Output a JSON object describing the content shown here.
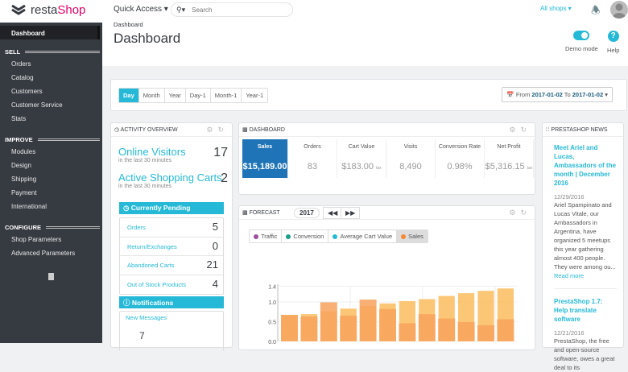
{
  "header": {
    "logo": {
      "brand_a": "resta",
      "brand_b": "Shop"
    },
    "quick_access": "Quick Access ▾",
    "search_placeholder": "Search",
    "all_shops": "All shops ▾"
  },
  "sidebar": {
    "active": "Dashboard",
    "sections": [
      {
        "title": "SELL",
        "items": [
          "Orders",
          "Catalog",
          "Customers",
          "Customer Service",
          "Stats"
        ]
      },
      {
        "title": "IMPROVE",
        "items": [
          "Modules",
          "Design",
          "Shipping",
          "Payment",
          "International"
        ]
      },
      {
        "title": "CONFIGURE",
        "items": [
          "Shop Parameters",
          "Advanced Parameters"
        ]
      }
    ]
  },
  "page": {
    "breadcrumb": "Dashboard",
    "title": "Dashboard",
    "demo_mode": "Demo mode",
    "demo_mode_on": true,
    "help": "Help"
  },
  "toolbar": {
    "periods": [
      "Day",
      "Month",
      "Year",
      "Day-1",
      "Month-1",
      "Year-1"
    ],
    "active_period": "Day",
    "from_label": "From",
    "from": "2017-01-02",
    "to_label": "To",
    "to": "2017-01-02"
  },
  "activity": {
    "title": "Activity overview",
    "online_visitors": {
      "label": "Online Visitors",
      "sub": "in the last 30 minutes",
      "value": "17"
    },
    "active_carts": {
      "label": "Active Shopping Carts",
      "sub": "in the last 30 minutes",
      "value": "2"
    },
    "pending_title": "Currently Pending",
    "pending": [
      {
        "label": "Orders",
        "value": "5"
      },
      {
        "label": "Return/Exchanges",
        "value": "0"
      },
      {
        "label": "Abandoned Carts",
        "value": "21"
      },
      {
        "label": "Out of Stock Products",
        "value": "4"
      }
    ],
    "notifications_title": "Notifications",
    "new_messages": {
      "label": "New Messages",
      "value": "7"
    }
  },
  "dashboard": {
    "title": "Dashboard",
    "kpis": [
      {
        "label": "Sales",
        "value": "$15,189.00",
        "tax": ""
      },
      {
        "label": "Orders",
        "value": "83",
        "tax": ""
      },
      {
        "label": "Cart Value",
        "value": "$183.00",
        "tax": "tax"
      },
      {
        "label": "Visits",
        "value": "8,490",
        "tax": ""
      },
      {
        "label": "Conversion Rate",
        "value": "0.98%",
        "tax": ""
      },
      {
        "label": "Net Profit",
        "value": "$5,316.15",
        "tax": "tax"
      }
    ]
  },
  "forecast": {
    "title": "Forecast",
    "year": "2017",
    "prev": "◀◀",
    "next": "▶▶",
    "legend": [
      {
        "label": "Traffic",
        "color": "#9b4f9e"
      },
      {
        "label": "Conversion",
        "color": "#1a9f8a"
      },
      {
        "label": "Average Cart Value",
        "color": "#25b9d7"
      },
      {
        "label": "Sales",
        "color": "#f7882f",
        "active": true
      }
    ]
  },
  "chart_data": {
    "type": "bar",
    "ylim": [
      0,
      1.4
    ],
    "yticks": [
      "0.0",
      "0.5",
      "1.0",
      "1.4"
    ],
    "grid": true,
    "series": [
      {
        "values": [
          0.67,
          0.63,
          0.99,
          0.65,
          1.06,
          0.82,
          0.46,
          0.69,
          0.58,
          0.49,
          0.41,
          0.56
        ],
        "color": "#f7a25c"
      },
      {
        "values": [
          0.68,
          0.7,
          0.77,
          0.84,
          0.9,
          0.97,
          1.03,
          1.08,
          1.16,
          1.23,
          1.29,
          1.35
        ],
        "color": "#fbc46e"
      }
    ]
  },
  "news": {
    "title": "PrestaShop News",
    "read_more": "Read more",
    "items": [
      {
        "title": "Meet Ariel and Lucas, Ambassadors of the month | December 2016",
        "date": "12/29/2016",
        "body": "Ariel Spampinato and Lucas Vitale, our Ambassadors in Argentina, have organized 5 meetups this year gathering almost 400 people. They were among ou..."
      },
      {
        "title": "PrestaShop 1.7: Help translate software",
        "date": "12/21/2016",
        "body": "PrestaShop, the free and open-source software, owes a great deal to its"
      }
    ]
  }
}
